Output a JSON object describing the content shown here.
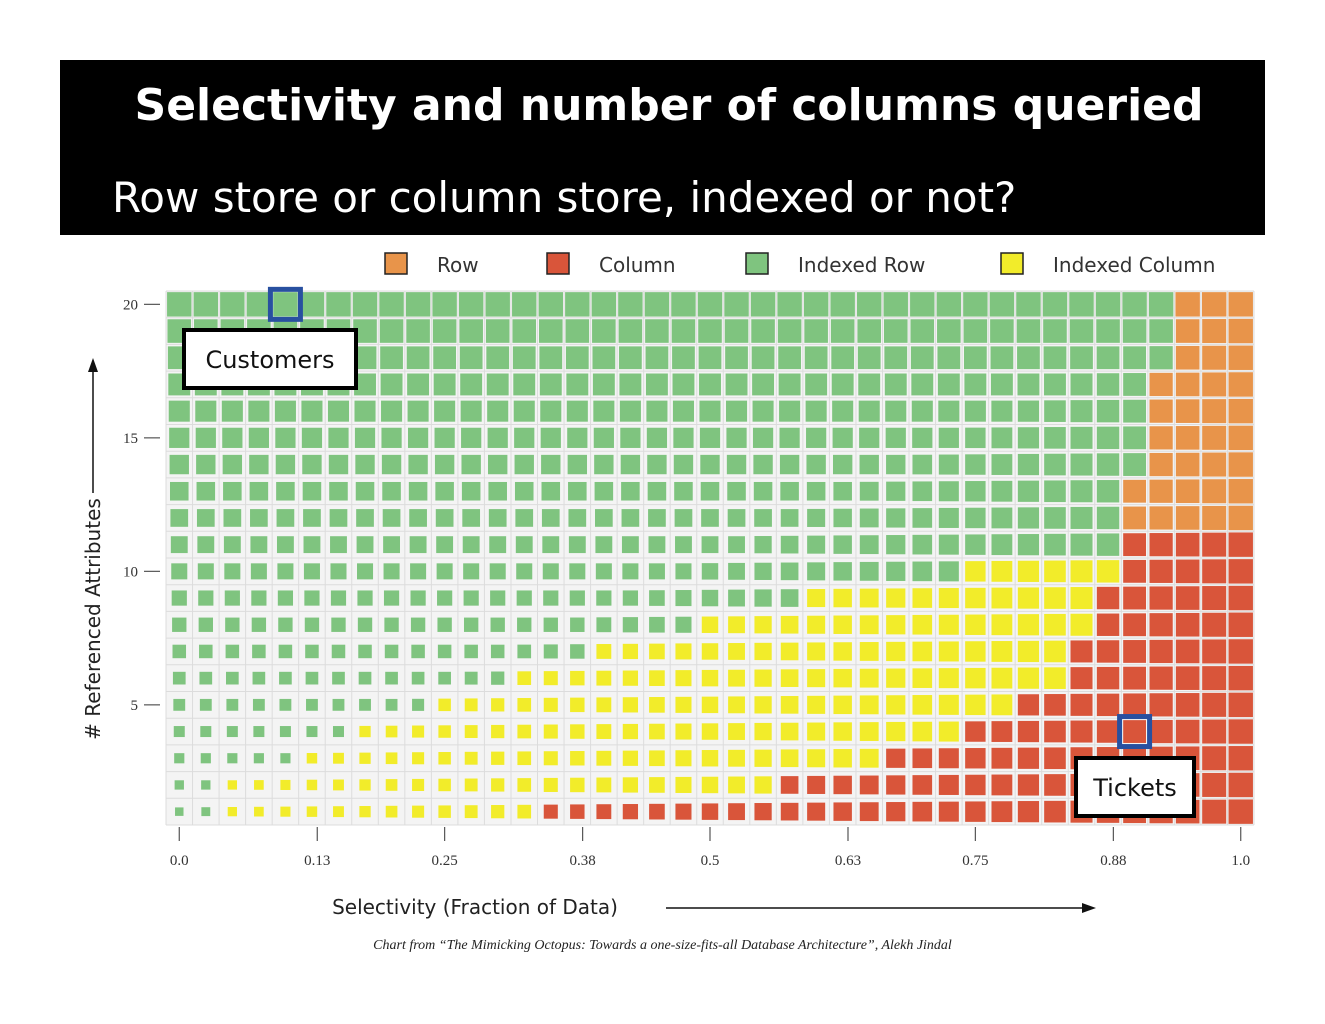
{
  "slide": {
    "title": "Selectivity and number of columns queried",
    "subtitle": "Row store or column store, indexed or not?",
    "caption": "Chart from “The Mimicking Octopus: Towards a one-size-fits-all Database Architecture”, Alekh Jindal"
  },
  "chart_data": {
    "type": "heatmap",
    "xlabel": "Selectivity (Fraction of Data)",
    "ylabel": "# Referenced Attributes",
    "x_ticks": [
      "0.0",
      "0.13",
      "0.25",
      "0.38",
      "0.5",
      "0.63",
      "0.75",
      "0.88",
      "1.0"
    ],
    "y_ticks": [
      "5",
      "10",
      "15",
      "20"
    ],
    "xlim": [
      0,
      1
    ],
    "ylim": [
      1,
      20
    ],
    "columns": 41,
    "rows": 20,
    "legend": [
      {
        "key": "row",
        "label": "Row",
        "color": "#e8944a"
      },
      {
        "key": "column",
        "label": "Column",
        "color": "#d9553a"
      },
      {
        "key": "indexed_row",
        "label": "Indexed Row",
        "color": "#7fc47f"
      },
      {
        "key": "indexed_column",
        "label": "Indexed Column",
        "color": "#f2ec2a"
      }
    ],
    "legend_placement": "top",
    "region_boundaries": {
      "description_free": true,
      "indexed_row_to_indexed_column_min_x_by_attributes": [
        {
          "attributes": 1,
          "x": 0.05
        },
        {
          "attributes": 2,
          "x": 0.05
        },
        {
          "attributes": 3,
          "x": 0.125
        },
        {
          "attributes": 4,
          "x": 0.175
        },
        {
          "attributes": 5,
          "x": 0.25
        },
        {
          "attributes": 6,
          "x": 0.325
        },
        {
          "attributes": 7,
          "x": 0.4
        },
        {
          "attributes": 8,
          "x": 0.5
        },
        {
          "attributes": 9,
          "x": 0.6
        },
        {
          "attributes": 10,
          "x": 0.75
        },
        {
          "attributes": 11,
          "x": 2.0
        }
      ],
      "to_column_min_x_by_attributes": [
        {
          "attributes": 1,
          "x": 0.35
        },
        {
          "attributes": 2,
          "x": 0.575
        },
        {
          "attributes": 3,
          "x": 0.675
        },
        {
          "attributes": 4,
          "x": 0.75
        },
        {
          "attributes": 5,
          "x": 0.8
        },
        {
          "attributes": 6,
          "x": 0.85
        },
        {
          "attributes": 7,
          "x": 0.85
        },
        {
          "attributes": 8,
          "x": 0.875
        },
        {
          "attributes": 9,
          "x": 0.875
        },
        {
          "attributes": 10,
          "x": 0.9
        },
        {
          "attributes": 11,
          "x": 0.9
        }
      ],
      "to_row_min_x_by_attributes": [
        {
          "attributes": 12,
          "x": 0.9
        },
        {
          "attributes": 13,
          "x": 0.9
        },
        {
          "attributes": 14,
          "x": 0.925
        },
        {
          "attributes": 15,
          "x": 0.925
        },
        {
          "attributes": 16,
          "x": 0.925
        },
        {
          "attributes": 17,
          "x": 0.925
        },
        {
          "attributes": 18,
          "x": 0.95
        },
        {
          "attributes": 19,
          "x": 0.95
        },
        {
          "attributes": 20,
          "x": 0.95
        }
      ]
    },
    "annotations": [
      {
        "label": "Customers",
        "x": 0.1,
        "attributes": 20
      },
      {
        "label": "Tickets",
        "x": 0.9,
        "attributes": 4
      }
    ]
  }
}
